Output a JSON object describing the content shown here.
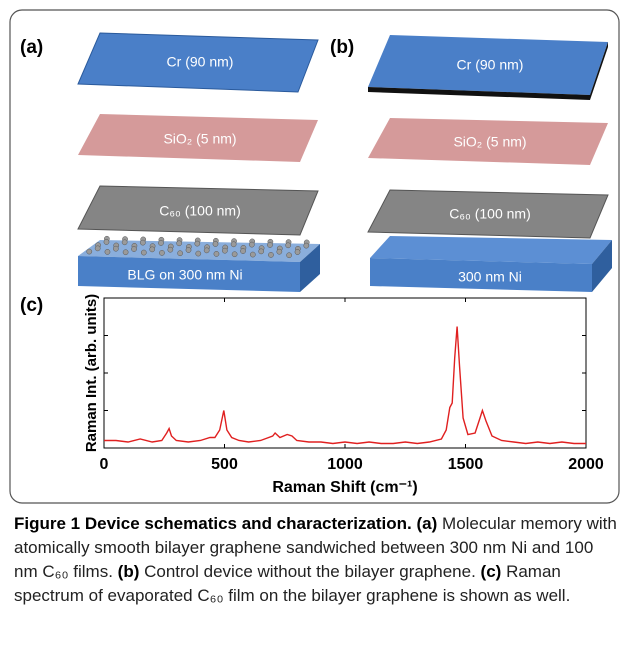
{
  "panels": [
    {
      "label": "(a)",
      "layers": [
        "Cr (90 nm)",
        "SiO₂ (5 nm)",
        "C₆₀ (100 nm)",
        "BLG on 300 nm Ni"
      ]
    },
    {
      "label": "(b)",
      "layers": [
        "Cr (90 nm)",
        "SiO₂ (5 nm)",
        "C₆₀ (100 nm)",
        "300 nm Ni"
      ]
    }
  ],
  "chart_data": {
    "type": "line",
    "label": "(c)",
    "x_label": "Raman Shift (cm⁻¹)",
    "y_label": "Raman Int. (arb. units)",
    "color": "#e02020",
    "xlim": [
      0,
      2000
    ],
    "xticks": [
      0,
      500,
      1000,
      1500,
      2000
    ],
    "ylim": [
      0,
      1
    ],
    "x": [
      0,
      50,
      100,
      150,
      200,
      240,
      260,
      270,
      280,
      300,
      350,
      400,
      440,
      460,
      480,
      497,
      510,
      530,
      560,
      600,
      650,
      700,
      710,
      730,
      760,
      780,
      800,
      850,
      900,
      950,
      1000,
      1050,
      1100,
      1150,
      1200,
      1250,
      1300,
      1350,
      1400,
      1420,
      1435,
      1445,
      1455,
      1465,
      1475,
      1490,
      1510,
      1540,
      1560,
      1570,
      1585,
      1610,
      1650,
      1700,
      1750,
      1800,
      1850,
      1900,
      1950,
      2000
    ],
    "y": [
      0.05,
      0.05,
      0.04,
      0.06,
      0.04,
      0.05,
      0.1,
      0.13,
      0.08,
      0.05,
      0.04,
      0.05,
      0.07,
      0.07,
      0.12,
      0.25,
      0.12,
      0.07,
      0.05,
      0.04,
      0.05,
      0.08,
      0.1,
      0.07,
      0.09,
      0.08,
      0.05,
      0.04,
      0.04,
      0.03,
      0.04,
      0.03,
      0.04,
      0.03,
      0.03,
      0.04,
      0.03,
      0.04,
      0.06,
      0.12,
      0.27,
      0.3,
      0.6,
      0.81,
      0.55,
      0.2,
      0.09,
      0.1,
      0.2,
      0.25,
      0.18,
      0.08,
      0.05,
      0.04,
      0.03,
      0.04,
      0.03,
      0.04,
      0.03,
      0.03
    ]
  },
  "caption": {
    "title": "Figure 1 Device schematics and characterization.",
    "parts": [
      {
        "label": "(a)",
        "text": "Molecular memory with atomically smooth bilayer graphene sandwiched between 300 nm Ni and 100 nm C₆₀ films."
      },
      {
        "label": "(b)",
        "text": "Control device without the bilayer graphene."
      },
      {
        "label": "(c)",
        "text": "Raman spectrum of evaporated C₆₀ film on the bilayer graphene is shown as well."
      }
    ]
  }
}
